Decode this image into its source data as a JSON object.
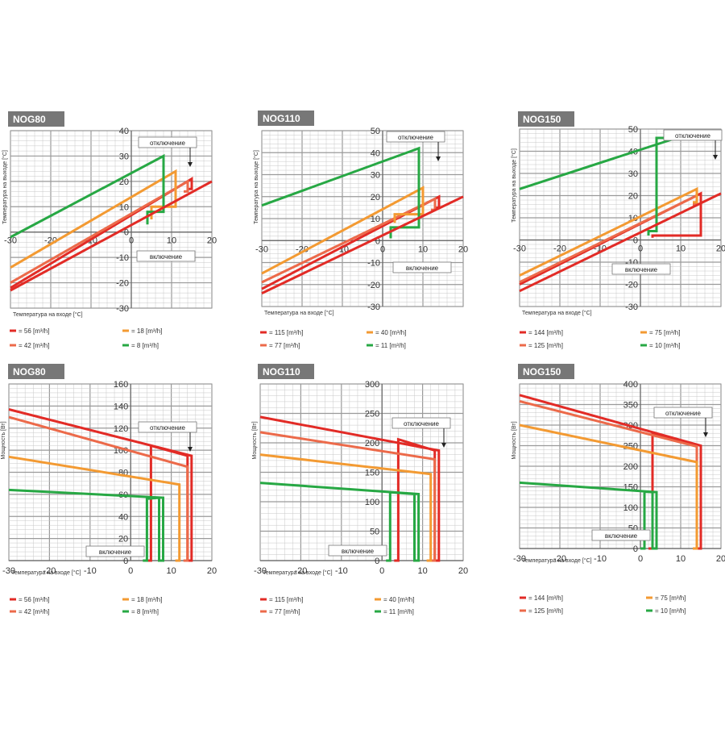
{
  "colors": {
    "red": "#e22b26",
    "salmon": "#ec6a4a",
    "orange": "#f39a32",
    "green": "#27a844",
    "title_bg": "#777777",
    "minor_grid": "#c8c8c8",
    "major_grid": "#9a9a9a"
  },
  "chart_data": [
    {
      "id": "c1",
      "type": "line",
      "title": "NOG80",
      "xlabel": "Температура на входе [°C]",
      "ylabel": "Температура на выходе [°C]",
      "xlim": [
        -30,
        20
      ],
      "ylim": [
        -30,
        40
      ],
      "xticks": [
        "-30",
        "-20",
        "-10",
        "0",
        "10",
        "20"
      ],
      "yticks": [
        "40",
        "30",
        "20",
        "10",
        "0",
        "-10",
        "-20",
        "-30"
      ],
      "callout_off": "отключение",
      "callout_on": "включение",
      "series": [
        {
          "name": "= 56 [m³/h]",
          "color_key": "red",
          "points": [
            [
              -30,
              -22
            ],
            [
              15,
              21
            ],
            [
              15,
              17
            ],
            [
              14,
              17
            ]
          ]
        },
        {
          "name": "= 42 [m³/h]",
          "color_key": "salmon",
          "points": [
            [
              -30,
              -20
            ],
            [
              14,
              20
            ],
            [
              14,
              16
            ],
            [
              13,
              16
            ]
          ]
        },
        {
          "name": "= 18 [m³/h]",
          "color_key": "orange",
          "points": [
            [
              -30,
              -14
            ],
            [
              11,
              24
            ],
            [
              11,
              10
            ],
            [
              5,
              10
            ],
            [
              5,
              5
            ]
          ]
        },
        {
          "name": "= 8 [m³/h]",
          "color_key": "green",
          "points": [
            [
              -30,
              -2
            ],
            [
              8,
              30
            ],
            [
              8,
              8
            ],
            [
              4,
              8
            ],
            [
              4,
              3
            ]
          ]
        },
        {
          "name": "",
          "color_key": "red",
          "points": [
            [
              -30,
              -23
            ],
            [
              20,
              20
            ]
          ]
        }
      ]
    },
    {
      "id": "c2",
      "type": "line",
      "title": "NOG110",
      "xlabel": "Температура на входе [°C]",
      "ylabel": "Температура на выходе [°C]",
      "xlim": [
        -30,
        20
      ],
      "ylim": [
        -30,
        50
      ],
      "xticks": [
        "-30",
        "-20",
        "-10",
        "0",
        "10",
        "20"
      ],
      "yticks": [
        "50",
        "40",
        "30",
        "20",
        "10",
        "0",
        "-10",
        "-20",
        "-30"
      ],
      "callout_off": "отключение",
      "callout_on": "включение",
      "series": [
        {
          "name": "= 115 [m³/h]",
          "color_key": "red",
          "points": [
            [
              -30,
              -22
            ],
            [
              14,
              20
            ],
            [
              14,
              15
            ],
            [
              13,
              15
            ]
          ]
        },
        {
          "name": "= 77 [m³/h]",
          "color_key": "salmon",
          "points": [
            [
              -30,
              -19
            ],
            [
              13,
              19
            ],
            [
              13,
              14
            ],
            [
              12,
              14
            ]
          ]
        },
        {
          "name": "= 40 [m³/h]",
          "color_key": "orange",
          "points": [
            [
              -30,
              -15
            ],
            [
              10,
              24
            ],
            [
              10,
              12
            ],
            [
              3,
              12
            ],
            [
              3,
              8
            ]
          ]
        },
        {
          "name": "= 11 [m³/h]",
          "color_key": "green",
          "points": [
            [
              -30,
              16
            ],
            [
              9,
              42
            ],
            [
              9,
              6
            ],
            [
              2,
              6
            ],
            [
              2,
              1
            ]
          ]
        },
        {
          "name": "",
          "color_key": "red",
          "points": [
            [
              -30,
              -24
            ],
            [
              20,
              20
            ]
          ]
        }
      ]
    },
    {
      "id": "c3",
      "type": "line",
      "title": "NOG150",
      "xlabel": "Температура на входе [°C]",
      "ylabel": "Температура на выходе [°C]",
      "xlim": [
        -30,
        20
      ],
      "ylim": [
        -30,
        50
      ],
      "xticks": [
        "-30",
        "-20",
        "-10",
        "0",
        "10",
        "20"
      ],
      "yticks": [
        "50",
        "40",
        "30",
        "20",
        "10",
        "0",
        "-10",
        "-20",
        "-30"
      ],
      "callout_off": "отключение",
      "callout_on": "включение",
      "series": [
        {
          "name": "= 144 [m³/h]",
          "color_key": "red",
          "points": [
            [
              -30,
              -20
            ],
            [
              15,
              21
            ],
            [
              15,
              2
            ],
            [
              3,
              2
            ],
            [
              3,
              1
            ]
          ]
        },
        {
          "name": "= 125 [m³/h]",
          "color_key": "salmon",
          "points": [
            [
              -30,
              -19
            ],
            [
              14,
              20
            ],
            [
              14,
              16
            ],
            [
              13,
              16
            ]
          ]
        },
        {
          "name": "= 75 [m³/h]",
          "color_key": "orange",
          "points": [
            [
              -30,
              -16
            ],
            [
              14,
              23
            ],
            [
              14,
              17
            ],
            [
              13,
              17
            ]
          ]
        },
        {
          "name": "= 10 [m³/h]",
          "color_key": "green",
          "points": [
            [
              -30,
              23
            ],
            [
              9,
              46
            ],
            [
              4,
              46
            ],
            [
              4,
              4
            ],
            [
              2,
              4
            ],
            [
              2,
              2
            ]
          ]
        },
        {
          "name": "",
          "color_key": "red",
          "points": [
            [
              -30,
              -23
            ],
            [
              20,
              21
            ]
          ]
        }
      ]
    },
    {
      "id": "c4",
      "type": "line",
      "title": "NOG80",
      "xlabel": "Температура на входе [°C]",
      "ylabel": "Мощность [Вт]",
      "xlim": [
        -30,
        20
      ],
      "ylim": [
        0,
        160
      ],
      "xticks": [
        "-30",
        "-20",
        "-10",
        "0",
        "10",
        "20"
      ],
      "yticks": [
        "160",
        "140",
        "120",
        "100",
        "80",
        "60",
        "40",
        "20",
        "0"
      ],
      "callout_off": "отключение",
      "callout_on": "включение",
      "series": [
        {
          "name": "= 56 [m³/h]",
          "color_key": "red",
          "points": [
            [
              -30,
              137
            ],
            [
              15,
              95
            ],
            [
              15,
              0
            ],
            [
              14,
              0
            ],
            [
              14,
              95
            ],
            [
              5,
              104
            ],
            [
              5,
              0
            ],
            [
              4,
              0
            ]
          ]
        },
        {
          "name": "= 42 [m³/h]",
          "color_key": "salmon",
          "points": [
            [
              -30,
              130
            ],
            [
              14,
              85
            ],
            [
              14,
              0
            ],
            [
              13,
              0
            ]
          ]
        },
        {
          "name": "= 18 [m³/h]",
          "color_key": "orange",
          "points": [
            [
              -30,
              94
            ],
            [
              12,
              69
            ],
            [
              12,
              0
            ],
            [
              11,
              0
            ]
          ]
        },
        {
          "name": "= 8 [m³/h]",
          "color_key": "green",
          "points": [
            [
              -30,
              64
            ],
            [
              8,
              57
            ],
            [
              8,
              0
            ],
            [
              7,
              0
            ],
            [
              7,
              57
            ],
            [
              4,
              56
            ],
            [
              4,
              0
            ],
            [
              3,
              0
            ]
          ]
        }
      ]
    },
    {
      "id": "c5",
      "type": "line",
      "title": "NOG110",
      "xlabel": "Температура на входе [°C]",
      "ylabel": "Мощность [Вт]",
      "xlim": [
        -30,
        20
      ],
      "ylim": [
        0,
        300
      ],
      "xticks": [
        "-30",
        "-20",
        "-10",
        "0",
        "10",
        "20"
      ],
      "yticks": [
        "300",
        "250",
        "200",
        "150",
        "100",
        "50",
        "0"
      ],
      "callout_off": "отключение",
      "callout_on": "включение",
      "series": [
        {
          "name": "= 115 [m³/h]",
          "color_key": "red",
          "points": [
            [
              -30,
              244
            ],
            [
              14,
              187
            ],
            [
              14,
              0
            ],
            [
              13,
              0
            ],
            [
              13,
              187
            ],
            [
              4,
              206
            ],
            [
              4,
              0
            ],
            [
              3,
              0
            ]
          ]
        },
        {
          "name": "= 77 [m³/h]",
          "color_key": "salmon",
          "points": [
            [
              -30,
              218
            ],
            [
              13,
              172
            ],
            [
              13,
              0
            ],
            [
              12,
              0
            ]
          ]
        },
        {
          "name": "= 40 [m³/h]",
          "color_key": "orange",
          "points": [
            [
              -30,
              180
            ],
            [
              12,
              147
            ],
            [
              12,
              0
            ],
            [
              11,
              0
            ]
          ]
        },
        {
          "name": "= 11 [m³/h]",
          "color_key": "green",
          "points": [
            [
              -30,
              132
            ],
            [
              9,
              113
            ],
            [
              9,
              0
            ],
            [
              8,
              0
            ],
            [
              8,
              113
            ],
            [
              2,
              116
            ],
            [
              2,
              0
            ],
            [
              1,
              0
            ]
          ]
        }
      ]
    },
    {
      "id": "c6",
      "type": "line",
      "title": "NOG150",
      "xlabel": "Температура на входе [°C]",
      "ylabel": "Мощность [Вт]",
      "xlim": [
        -30,
        20
      ],
      "ylim": [
        0,
        400
      ],
      "xticks": [
        "-30",
        "-20",
        "-10",
        "0",
        "10",
        "20"
      ],
      "yticks": [
        "400",
        "350",
        "300",
        "250",
        "200",
        "150",
        "100",
        "50",
        "0"
      ],
      "callout_off": "отключение",
      "callout_on": "включение",
      "series": [
        {
          "name": "= 144 [m³/h]",
          "color_key": "red",
          "points": [
            [
              -30,
              373
            ],
            [
              15,
              250
            ],
            [
              15,
              0
            ],
            [
              14,
              0
            ],
            [
              14,
              250
            ],
            [
              3,
              280
            ],
            [
              3,
              0
            ],
            [
              2,
              0
            ]
          ]
        },
        {
          "name": "= 125 [m³/h]",
          "color_key": "salmon",
          "points": [
            [
              -30,
              358
            ],
            [
              14,
              248
            ],
            [
              14,
              0
            ],
            [
              13,
              0
            ]
          ]
        },
        {
          "name": "= 75 [m³/h]",
          "color_key": "orange",
          "points": [
            [
              -30,
              300
            ],
            [
              14,
              210
            ],
            [
              14,
              0
            ],
            [
              13,
              0
            ]
          ]
        },
        {
          "name": "= 10 [m³/h]",
          "color_key": "green",
          "points": [
            [
              -30,
              160
            ],
            [
              4,
              137
            ],
            [
              4,
              0
            ],
            [
              3,
              0
            ],
            [
              3,
              137
            ],
            [
              1,
              138
            ],
            [
              1,
              0
            ],
            [
              0,
              0
            ]
          ]
        }
      ]
    }
  ]
}
